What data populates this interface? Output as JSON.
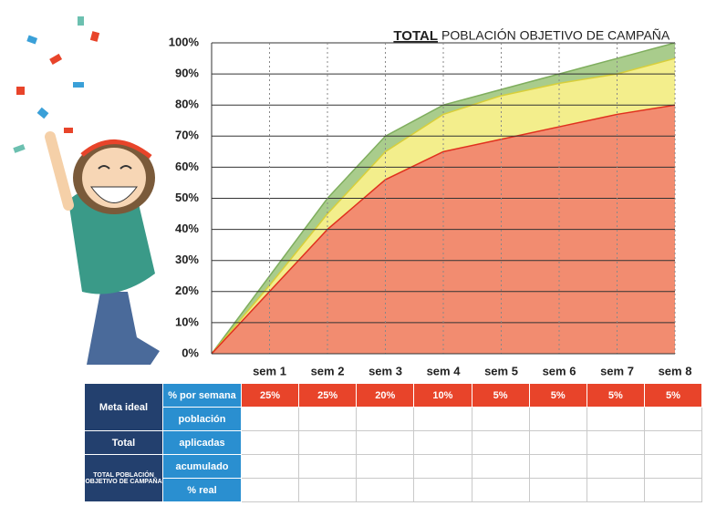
{
  "chart_data": {
    "type": "area",
    "title_parts": [
      "TOTAL",
      "POBLACIÓN OBJETIVO DE CAMPAÑA"
    ],
    "categories": [
      null,
      "sem 1",
      "sem 2",
      "sem 3",
      "sem 4",
      "sem 5",
      "sem 6",
      "sem 7",
      "sem 8"
    ],
    "series": [
      {
        "color": "#a9cc8c",
        "line": "#7fae5e",
        "values": [
          0,
          25,
          50,
          70,
          80,
          85,
          90,
          95,
          100
        ]
      },
      {
        "color": "#f3ee8c",
        "line": "#d8cf3a",
        "values": [
          0,
          22,
          45,
          65,
          77,
          83,
          87,
          90,
          95
        ]
      },
      {
        "color": "#f28c70",
        "line": "#e0301e",
        "values": [
          0,
          20,
          40,
          56,
          65,
          69,
          73,
          77,
          80
        ]
      }
    ],
    "ylim": [
      0,
      100
    ],
    "yticks": [
      {
        "value": 0,
        "label": "0%"
      },
      {
        "value": 10,
        "label": "10%"
      },
      {
        "value": 20,
        "label": "20%"
      },
      {
        "value": 30,
        "label": "30%"
      },
      {
        "value": 40,
        "label": "40%"
      },
      {
        "value": 50,
        "label": "50%"
      },
      {
        "value": 60,
        "label": "60%"
      },
      {
        "value": 70,
        "label": "70%"
      },
      {
        "value": 80,
        "label": "80%"
      },
      {
        "value": 90,
        "label": "90%"
      },
      {
        "value": 100,
        "label": "100%"
      }
    ],
    "grid": true
  },
  "table": {
    "groups": [
      "Meta ideal",
      "Total",
      "TOTAL POBLACIÓN OBJETIVO DE CAMPAÑA"
    ],
    "row_labels": [
      "% por semana",
      "población",
      "aplicadas",
      "acumulado",
      "% real"
    ],
    "rows": [
      [
        "25%",
        "25%",
        "20%",
        "10%",
        "5%",
        "5%",
        "5%",
        "5%"
      ],
      [],
      [],
      [],
      []
    ]
  }
}
